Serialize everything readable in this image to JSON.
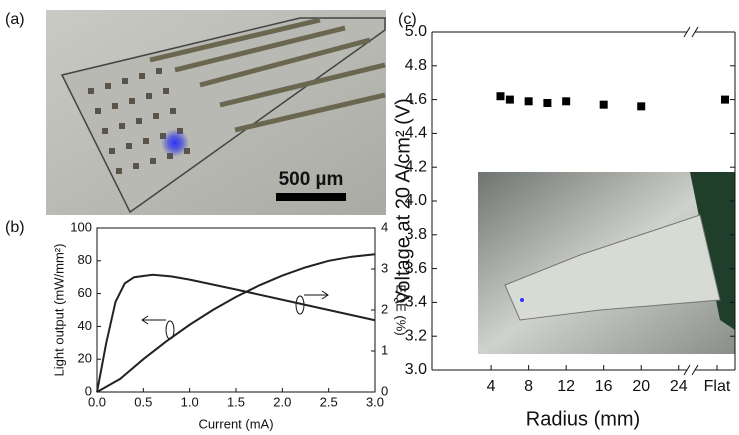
{
  "panel_labels": [
    "(a)",
    "(b)",
    "(c)"
  ],
  "photo": {
    "scale_bar": "500 µm"
  },
  "chart_data": [
    {
      "type": "line",
      "x_label": "Current (mA)",
      "y_label": "Light output (mW/mm²)",
      "y2_label": "EQE (%)",
      "xlim": [
        0,
        3
      ],
      "xticks": [
        {
          "value": 0,
          "label": "0.0"
        },
        {
          "value": 0.5,
          "label": "0.5"
        },
        {
          "value": 1,
          "label": "1.0"
        },
        {
          "value": 1.5,
          "label": "1.5"
        },
        {
          "value": 2,
          "label": "2.0"
        },
        {
          "value": 2.5,
          "label": "2.5"
        },
        {
          "value": 3,
          "label": "3.0"
        }
      ],
      "ylim": [
        0,
        100
      ],
      "yticks": [
        0,
        20,
        40,
        60,
        80,
        100
      ],
      "y2lim": [
        0,
        4
      ],
      "y2ticks": [
        0,
        1,
        2,
        3,
        4
      ],
      "series": [
        {
          "color": "#222222",
          "x": [
            0,
            0.25,
            0.5,
            0.75,
            1,
            1.25,
            1.5,
            1.75,
            2,
            2.25,
            2.5,
            2.75,
            3
          ],
          "values": [
            0,
            8,
            20,
            31,
            41,
            50,
            58,
            65,
            71,
            76,
            80,
            82.5,
            84
          ]
        },
        {
          "color": "#222222",
          "axis": "y2",
          "x": [
            0,
            0.1,
            0.2,
            0.3,
            0.4,
            0.6,
            0.8,
            1,
            1.5,
            2,
            2.5,
            3
          ],
          "values": [
            0,
            1.2,
            2.2,
            2.65,
            2.8,
            2.86,
            2.82,
            2.74,
            2.5,
            2.25,
            2,
            1.75
          ]
        }
      ]
    },
    {
      "type": "scatter",
      "x_label": "Radius (mm)",
      "y_label": "Voltage at 20 A/cm² (V)",
      "xlim": [
        -2.3,
        25.2
      ],
      "xticks": [
        4,
        8,
        12,
        16,
        20,
        24
      ],
      "ylim": [
        3,
        5
      ],
      "yticks": [
        {
          "value": 3,
          "label": "3.0"
        },
        {
          "value": 3.2,
          "label": "3.2"
        },
        {
          "value": 3.4,
          "label": "3.4"
        },
        {
          "value": 3.6,
          "label": "3.6"
        },
        {
          "value": 3.8,
          "label": "3.8"
        },
        {
          "value": 4,
          "label": "4.0"
        },
        {
          "value": 4.2,
          "label": "4.2"
        },
        {
          "value": 4.4,
          "label": "4.4"
        },
        {
          "value": 4.6,
          "label": "4.6"
        },
        {
          "value": 4.8,
          "label": "4.8"
        },
        {
          "value": 5,
          "label": "5.0"
        }
      ],
      "series": [
        {
          "color": "#000000",
          "x": [
            5,
            6,
            8,
            10,
            12,
            16,
            20
          ],
          "values": [
            4.62,
            4.6,
            4.59,
            4.58,
            4.59,
            4.57,
            4.56
          ]
        }
      ],
      "break_point": {
        "label": "Flat",
        "value": 4.6
      }
    }
  ]
}
